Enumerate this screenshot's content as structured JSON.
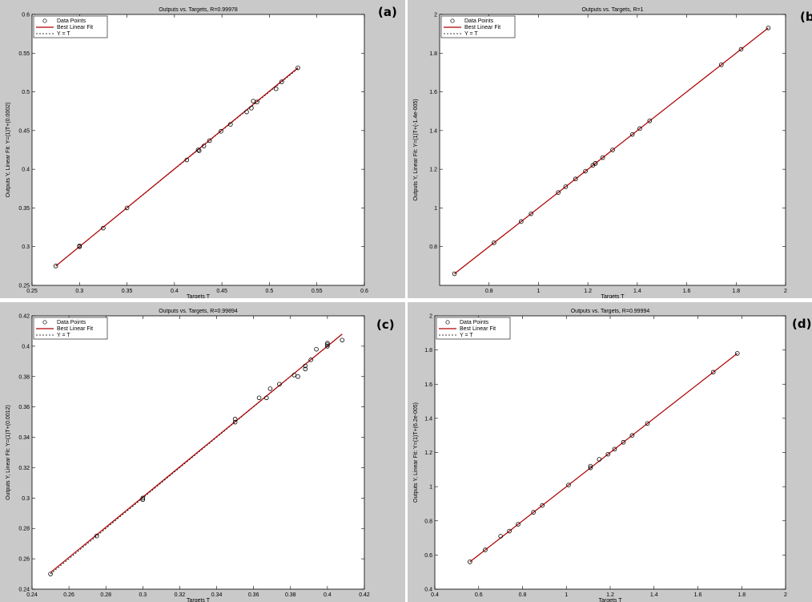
{
  "colors": {
    "fit_line": "#b00000",
    "background": "#c9c9c9",
    "axes_bg": "#ffffff",
    "marker": "#000000"
  },
  "chart_data": [
    {
      "type": "scatter",
      "panel_label": "(a)",
      "title": "Outputs vs. Targets, R=0.99978",
      "xlabel": "Targets T",
      "ylabel": "Outputs Y,  Linear Fit: Y=(1)T+(0.0002)",
      "xlim": [
        0.25,
        0.6
      ],
      "ylim": [
        0.25,
        0.6
      ],
      "xticks": [
        "0.25",
        "0.3",
        "0.35",
        "0.4",
        "0.45",
        "0.5",
        "0.55",
        "0.6"
      ],
      "yticks": [
        "0.25",
        "0.3",
        "0.35",
        "0.4",
        "0.45",
        "0.5",
        "0.55",
        "0.6"
      ],
      "legend": [
        "Data Points",
        "Best Linear Fit",
        "Y = T"
      ],
      "legend_position": "top-left",
      "grid": false,
      "fit": [
        [
          0.275,
          0.275
        ],
        [
          0.53,
          0.531
        ]
      ],
      "x": [
        0.275,
        0.3,
        0.3,
        0.325,
        0.35,
        0.413,
        0.425,
        0.426,
        0.431,
        0.437,
        0.449,
        0.459,
        0.476,
        0.481,
        0.483,
        0.487,
        0.507,
        0.513,
        0.53
      ],
      "y": [
        0.275,
        0.301,
        0.3,
        0.324,
        0.35,
        0.412,
        0.425,
        0.424,
        0.43,
        0.437,
        0.449,
        0.458,
        0.474,
        0.479,
        0.488,
        0.487,
        0.504,
        0.513,
        0.531
      ]
    },
    {
      "type": "scatter",
      "panel_label": "(b)",
      "title": "Outputs vs. Targets, R=1",
      "xlabel": "Targets T",
      "ylabel": "Outputs Y,  Linear Fit: Y=(1)T+(-1.4e-005)",
      "xlim": [
        0.6,
        2.0
      ],
      "ylim": [
        0.6,
        2.0
      ],
      "xticks": [
        "0.8",
        "1",
        "1.2",
        "1.4",
        "1.6",
        "1.8",
        "2"
      ],
      "yticks": [
        "0.8",
        "1",
        "1.2",
        "1.4",
        "1.6",
        "1.8",
        "2"
      ],
      "legend": [
        "Data Points",
        "Best Linear Fit",
        "Y = T"
      ],
      "legend_position": "top-left",
      "grid": false,
      "fit": [
        [
          0.66,
          0.66
        ],
        [
          1.93,
          1.93
        ]
      ],
      "x": [
        0.66,
        0.82,
        0.93,
        0.97,
        1.08,
        1.11,
        1.15,
        1.19,
        1.22,
        1.23,
        1.23,
        1.26,
        1.3,
        1.38,
        1.41,
        1.45,
        1.74,
        1.82,
        1.93
      ],
      "y": [
        0.66,
        0.82,
        0.93,
        0.97,
        1.08,
        1.11,
        1.15,
        1.19,
        1.22,
        1.23,
        1.23,
        1.26,
        1.3,
        1.38,
        1.41,
        1.45,
        1.74,
        1.82,
        1.93
      ]
    },
    {
      "type": "scatter",
      "panel_label": "(c)",
      "title": "Outputs vs. Targets, R=0.99894",
      "xlabel": "Targets T",
      "ylabel": "Outputs Y,  Linear Fit: Y=(1)T+(0.0012)",
      "xlim": [
        0.24,
        0.42
      ],
      "ylim": [
        0.24,
        0.42
      ],
      "xticks": [
        "0.24",
        "0.26",
        "0.28",
        "0.3",
        "0.32",
        "0.34",
        "0.36",
        "0.38",
        "0.4",
        "0.42"
      ],
      "yticks": [
        "0.24",
        "0.26",
        "0.28",
        "0.3",
        "0.32",
        "0.34",
        "0.36",
        "0.38",
        "0.4",
        "0.42"
      ],
      "legend": [
        "Data Points",
        "Best Linear Fit",
        "Y = T"
      ],
      "legend_position": "top-left",
      "grid": false,
      "fit": [
        [
          0.25,
          0.251
        ],
        [
          0.408,
          0.408
        ]
      ],
      "x": [
        0.25,
        0.275,
        0.3,
        0.3,
        0.35,
        0.35,
        0.363,
        0.367,
        0.369,
        0.374,
        0.382,
        0.384,
        0.388,
        0.388,
        0.391,
        0.394,
        0.4,
        0.4,
        0.4,
        0.408
      ],
      "y": [
        0.25,
        0.275,
        0.3,
        0.299,
        0.352,
        0.35,
        0.366,
        0.366,
        0.372,
        0.375,
        0.381,
        0.38,
        0.387,
        0.385,
        0.391,
        0.398,
        0.4,
        0.401,
        0.402,
        0.404
      ]
    },
    {
      "type": "scatter",
      "panel_label": "(d)",
      "title": "Outputs vs. Targets, R=0.99994",
      "xlabel": "Targets T",
      "ylabel": "Outputs Y,  Linear Fit: Y=(1)T+(6.2e-005)",
      "xlim": [
        0.4,
        2.0
      ],
      "ylim": [
        0.4,
        2.0
      ],
      "xticks": [
        "0.4",
        "0.6",
        "0.8",
        "1",
        "1.2",
        "1.4",
        "1.6",
        "1.8",
        "2"
      ],
      "yticks": [
        "0.4",
        "0.6",
        "0.8",
        "1",
        "1.2",
        "1.4",
        "1.6",
        "1.8",
        "2"
      ],
      "legend": [
        "Data Points",
        "Best Linear Fit",
        "Y = T"
      ],
      "legend_position": "top-left",
      "grid": false,
      "fit": [
        [
          0.56,
          0.56
        ],
        [
          1.78,
          1.78
        ]
      ],
      "x": [
        0.56,
        0.63,
        0.7,
        0.74,
        0.78,
        0.85,
        0.89,
        1.01,
        1.11,
        1.11,
        1.15,
        1.19,
        1.22,
        1.26,
        1.3,
        1.37,
        1.67,
        1.78
      ],
      "y": [
        0.56,
        0.63,
        0.71,
        0.74,
        0.78,
        0.85,
        0.89,
        1.01,
        1.11,
        1.12,
        1.16,
        1.19,
        1.22,
        1.26,
        1.3,
        1.37,
        1.67,
        1.78
      ]
    }
  ]
}
